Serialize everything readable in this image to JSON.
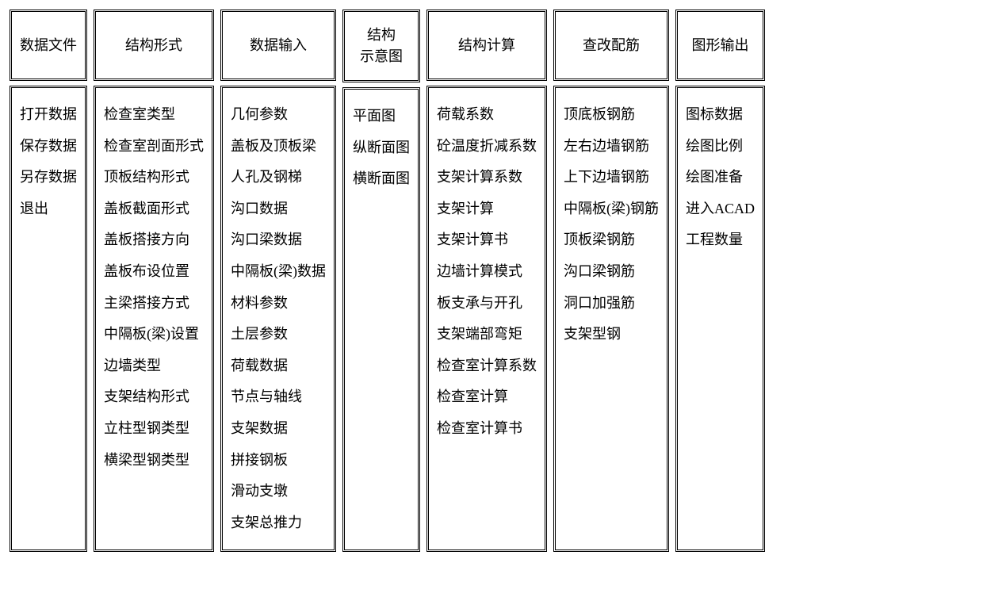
{
  "table": {
    "type": "menu-table",
    "background_color": "#ffffff",
    "text_color": "#000000",
    "border_color": "#000000",
    "border_style": "double",
    "font_family": "SimSun",
    "font_size_pt": 14,
    "line_height": 2.2,
    "columns": [
      {
        "header": "数据文件",
        "header_lines": [
          "数据文件"
        ],
        "items": [
          "打开数据",
          "保存数据",
          "另存数据",
          "退出"
        ]
      },
      {
        "header": "结构形式",
        "header_lines": [
          "结构形式"
        ],
        "items": [
          "检查室类型",
          "检查室剖面形式",
          "顶板结构形式",
          "盖板截面形式",
          "盖板搭接方向",
          "盖板布设位置",
          "主梁搭接方式",
          "中隔板(梁)设置",
          "边墙类型",
          "支架结构形式",
          "立柱型钢类型",
          "横梁型钢类型"
        ]
      },
      {
        "header": "数据输入",
        "header_lines": [
          "数据输入"
        ],
        "items": [
          "几何参数",
          "盖板及顶板梁",
          "人孔及钢梯",
          "沟口数据",
          "沟口梁数据",
          "中隔板(梁)数据",
          "材料参数",
          "土层参数",
          "荷载数据",
          "节点与轴线",
          "支架数据",
          "拼接钢板",
          "滑动支墩",
          "支架总推力"
        ]
      },
      {
        "header": "结构\n示意图",
        "header_lines": [
          "结构",
          "示意图"
        ],
        "items": [
          "平面图",
          "纵断面图",
          "横断面图"
        ]
      },
      {
        "header": "结构计算",
        "header_lines": [
          "结构计算"
        ],
        "items": [
          "荷载系数",
          "砼温度折减系数",
          "支架计算系数",
          "支架计算",
          "支架计算书",
          "边墙计算模式",
          "板支承与开孔",
          "支架端部弯矩",
          "检查室计算系数",
          "检查室计算",
          "检查室计算书"
        ]
      },
      {
        "header": "查改配筋",
        "header_lines": [
          "查改配筋"
        ],
        "items": [
          "顶底板钢筋",
          "左右边墙钢筋",
          "上下边墙钢筋",
          "中隔板(梁)钢筋",
          "顶板梁钢筋",
          "沟口梁钢筋",
          "洞口加强筋",
          "支架型钢"
        ]
      },
      {
        "header": "图形输出",
        "header_lines": [
          "图形输出"
        ],
        "items": [
          "图标数据",
          "绘图比例",
          "绘图准备",
          "进入ACAD",
          "工程数量"
        ]
      }
    ]
  }
}
